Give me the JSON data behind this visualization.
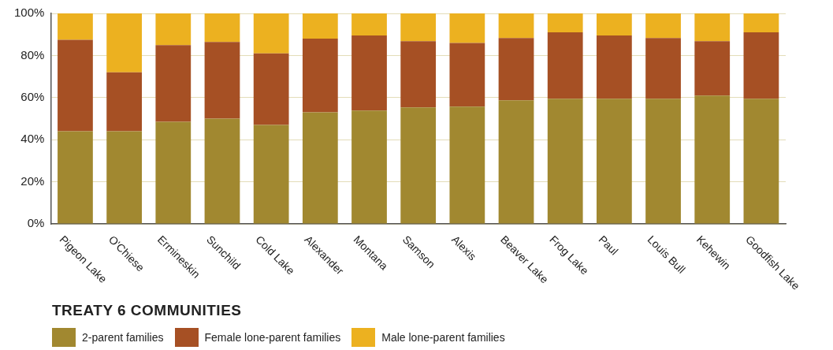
{
  "chart_data": {
    "type": "bar",
    "stacked": true,
    "title": "TREATY 6 COMMUNITIES",
    "categories": [
      "Pigeon Lake",
      "O'Chiese",
      "Ermineskin",
      "Sunchild",
      "Cold Lake",
      "Alexander",
      "Montana",
      "Samson",
      "Alexis",
      "Beaver Lake",
      "Frog Lake",
      "Paul",
      "Louis Bull",
      "Kehewin",
      "Goodfish Lake"
    ],
    "series": [
      {
        "name": "2-parent families",
        "color": "#a18830",
        "values": [
          44,
          44,
          48.5,
          50,
          47,
          53,
          53.8,
          55.3,
          55.7,
          58.7,
          59.5,
          59.5,
          59.5,
          61,
          59.5
        ]
      },
      {
        "name": "Female lone-parent families",
        "color": "#a65024",
        "values": [
          43.5,
          28,
          36.4,
          36.4,
          34,
          35,
          35.7,
          31.5,
          30.3,
          29.6,
          31.5,
          30,
          28.8,
          25.8,
          31.5
        ]
      },
      {
        "name": "Male lone-parent families",
        "color": "#ecb120",
        "values": [
          12.5,
          28,
          15.1,
          13.6,
          19,
          12,
          10.5,
          13.2,
          14,
          11.7,
          9,
          10.5,
          11.7,
          13.2,
          9
        ]
      }
    ],
    "ylim": [
      0,
      100
    ],
    "yticks": [
      {
        "value": 0,
        "label": "0%"
      },
      {
        "value": 20,
        "label": "20%"
      },
      {
        "value": 40,
        "label": "40%"
      },
      {
        "value": 60,
        "label": "60%"
      },
      {
        "value": 80,
        "label": "80%"
      },
      {
        "value": 100,
        "label": "100%"
      }
    ],
    "grid": "y",
    "legend": "bottom"
  }
}
